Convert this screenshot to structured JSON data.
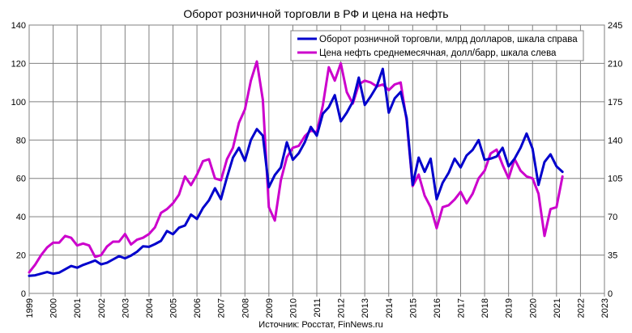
{
  "chart_data": {
    "type": "line",
    "title": "Оборот розничной торговли в РФ и цена на нефть",
    "source": "Источник: Росстат, FinNews.ru",
    "grid": true,
    "legend_position": "top-right",
    "x_ticks": [
      "1999",
      "2000",
      "2001",
      "2002",
      "2003",
      "2004",
      "2005",
      "2006",
      "2007",
      "2008",
      "2009",
      "2010",
      "2011",
      "2012",
      "2013",
      "2014",
      "2015",
      "2016",
      "2017",
      "2018",
      "2019",
      "2020",
      "2021",
      "2022",
      "2023"
    ],
    "xlim": [
      1999,
      2023
    ],
    "y_left": {
      "ticks": [
        "0",
        "20",
        "40",
        "60",
        "80",
        "100",
        "120",
        "140"
      ],
      "lim": [
        0,
        140
      ]
    },
    "y_right": {
      "ticks": [
        "0",
        "35",
        "70",
        "105",
        "140",
        "175",
        "210",
        "245"
      ],
      "lim": [
        0,
        245
      ]
    },
    "colors": {
      "retail": "#0000CC",
      "oil": "#CC00CC"
    },
    "series": [
      {
        "name": "Оборот розничной торговли, млрд долларов, шкала справа",
        "axis": "right",
        "color": "#0000CC",
        "x": [
          1999.0,
          1999.25,
          1999.5,
          1999.75,
          2000.0,
          2000.25,
          2000.5,
          2000.75,
          2001.0,
          2001.25,
          2001.5,
          2001.75,
          2002.0,
          2002.25,
          2002.5,
          2002.75,
          2003.0,
          2003.25,
          2003.5,
          2003.75,
          2004.0,
          2004.25,
          2004.5,
          2004.75,
          2005.0,
          2005.25,
          2005.5,
          2005.75,
          2006.0,
          2006.25,
          2006.5,
          2006.75,
          2007.0,
          2007.25,
          2007.5,
          2007.75,
          2008.0,
          2008.25,
          2008.5,
          2008.75,
          2009.0,
          2009.25,
          2009.5,
          2009.75,
          2010.0,
          2010.25,
          2010.5,
          2010.75,
          2011.0,
          2011.25,
          2011.5,
          2011.75,
          2012.0,
          2012.25,
          2012.5,
          2012.75,
          2013.0,
          2013.25,
          2013.5,
          2013.75,
          2014.0,
          2014.25,
          2014.5,
          2014.75,
          2015.0,
          2015.25,
          2015.5,
          2015.75,
          2016.0,
          2016.25,
          2016.5,
          2016.75,
          2017.0,
          2017.25,
          2017.5,
          2017.75,
          2018.0,
          2018.25,
          2018.5,
          2018.75,
          2019.0,
          2019.25,
          2019.5,
          2019.75,
          2020.0,
          2020.25,
          2020.5,
          2020.75,
          2021.0,
          2021.25
        ],
        "values": [
          16,
          16.5,
          18,
          19.5,
          18,
          19,
          22,
          25,
          23.5,
          26,
          28,
          30,
          26.5,
          28,
          31,
          34,
          32,
          34.5,
          38,
          43,
          42.5,
          45,
          48,
          57,
          54,
          60,
          62,
          72,
          68,
          78,
          85,
          96,
          86,
          106,
          124,
          133,
          121,
          140,
          150,
          144,
          97,
          108,
          115,
          138,
          122,
          128,
          138,
          152,
          144,
          164,
          170,
          181,
          157,
          165,
          175,
          197,
          172,
          180,
          189,
          205,
          165,
          178,
          184,
          160,
          99,
          124,
          111,
          123,
          86,
          101,
          110,
          123,
          115,
          126,
          131,
          140,
          122,
          123,
          125,
          133,
          116,
          123,
          133,
          146,
          132,
          99,
          120,
          127,
          116,
          111
        ]
      },
      {
        "name": "Цена нефть среднемесячная, долл/барр, шкала слева",
        "axis": "left",
        "color": "#CC00CC",
        "x": [
          1999.0,
          1999.25,
          1999.5,
          1999.75,
          2000.0,
          2000.25,
          2000.5,
          2000.75,
          2001.0,
          2001.25,
          2001.5,
          2001.75,
          2002.0,
          2002.25,
          2002.5,
          2002.75,
          2003.0,
          2003.25,
          2003.5,
          2003.75,
          2004.0,
          2004.25,
          2004.5,
          2004.75,
          2005.0,
          2005.25,
          2005.5,
          2005.75,
          2006.0,
          2006.25,
          2006.5,
          2006.75,
          2007.0,
          2007.25,
          2007.5,
          2007.75,
          2008.0,
          2008.25,
          2008.5,
          2008.75,
          2009.0,
          2009.25,
          2009.5,
          2009.75,
          2010.0,
          2010.25,
          2010.5,
          2010.75,
          2011.0,
          2011.25,
          2011.5,
          2011.75,
          2012.0,
          2012.25,
          2012.5,
          2012.75,
          2013.0,
          2013.25,
          2013.5,
          2013.75,
          2014.0,
          2014.25,
          2014.5,
          2014.75,
          2015.0,
          2015.25,
          2015.5,
          2015.75,
          2016.0,
          2016.25,
          2016.5,
          2016.75,
          2017.0,
          2017.25,
          2017.5,
          2017.75,
          2018.0,
          2018.25,
          2018.5,
          2018.75,
          2019.0,
          2019.25,
          2019.5,
          2019.75,
          2020.0,
          2020.25,
          2020.5,
          2020.75,
          2021.0,
          2021.25
        ],
        "values": [
          11,
          15,
          20,
          24,
          26.5,
          26.5,
          30,
          29,
          25,
          26,
          25,
          19,
          20,
          24.5,
          27,
          27,
          31,
          25.5,
          28,
          29,
          31,
          34.5,
          42,
          44,
          47,
          51.5,
          61,
          56.5,
          62,
          69,
          70,
          60,
          59,
          70,
          76,
          89,
          96,
          111,
          121,
          101,
          45,
          38,
          59,
          71,
          76,
          77,
          82,
          85,
          84,
          98,
          118,
          111,
          120,
          105,
          99,
          109,
          111,
          110,
          108,
          109,
          106,
          109,
          110,
          90,
          56,
          62,
          51,
          45,
          34,
          45,
          46,
          49,
          53,
          47,
          52,
          60,
          64,
          73,
          75,
          67,
          60,
          70,
          64,
          61,
          60,
          52,
          30,
          44,
          45,
          61
        ]
      }
    ]
  }
}
